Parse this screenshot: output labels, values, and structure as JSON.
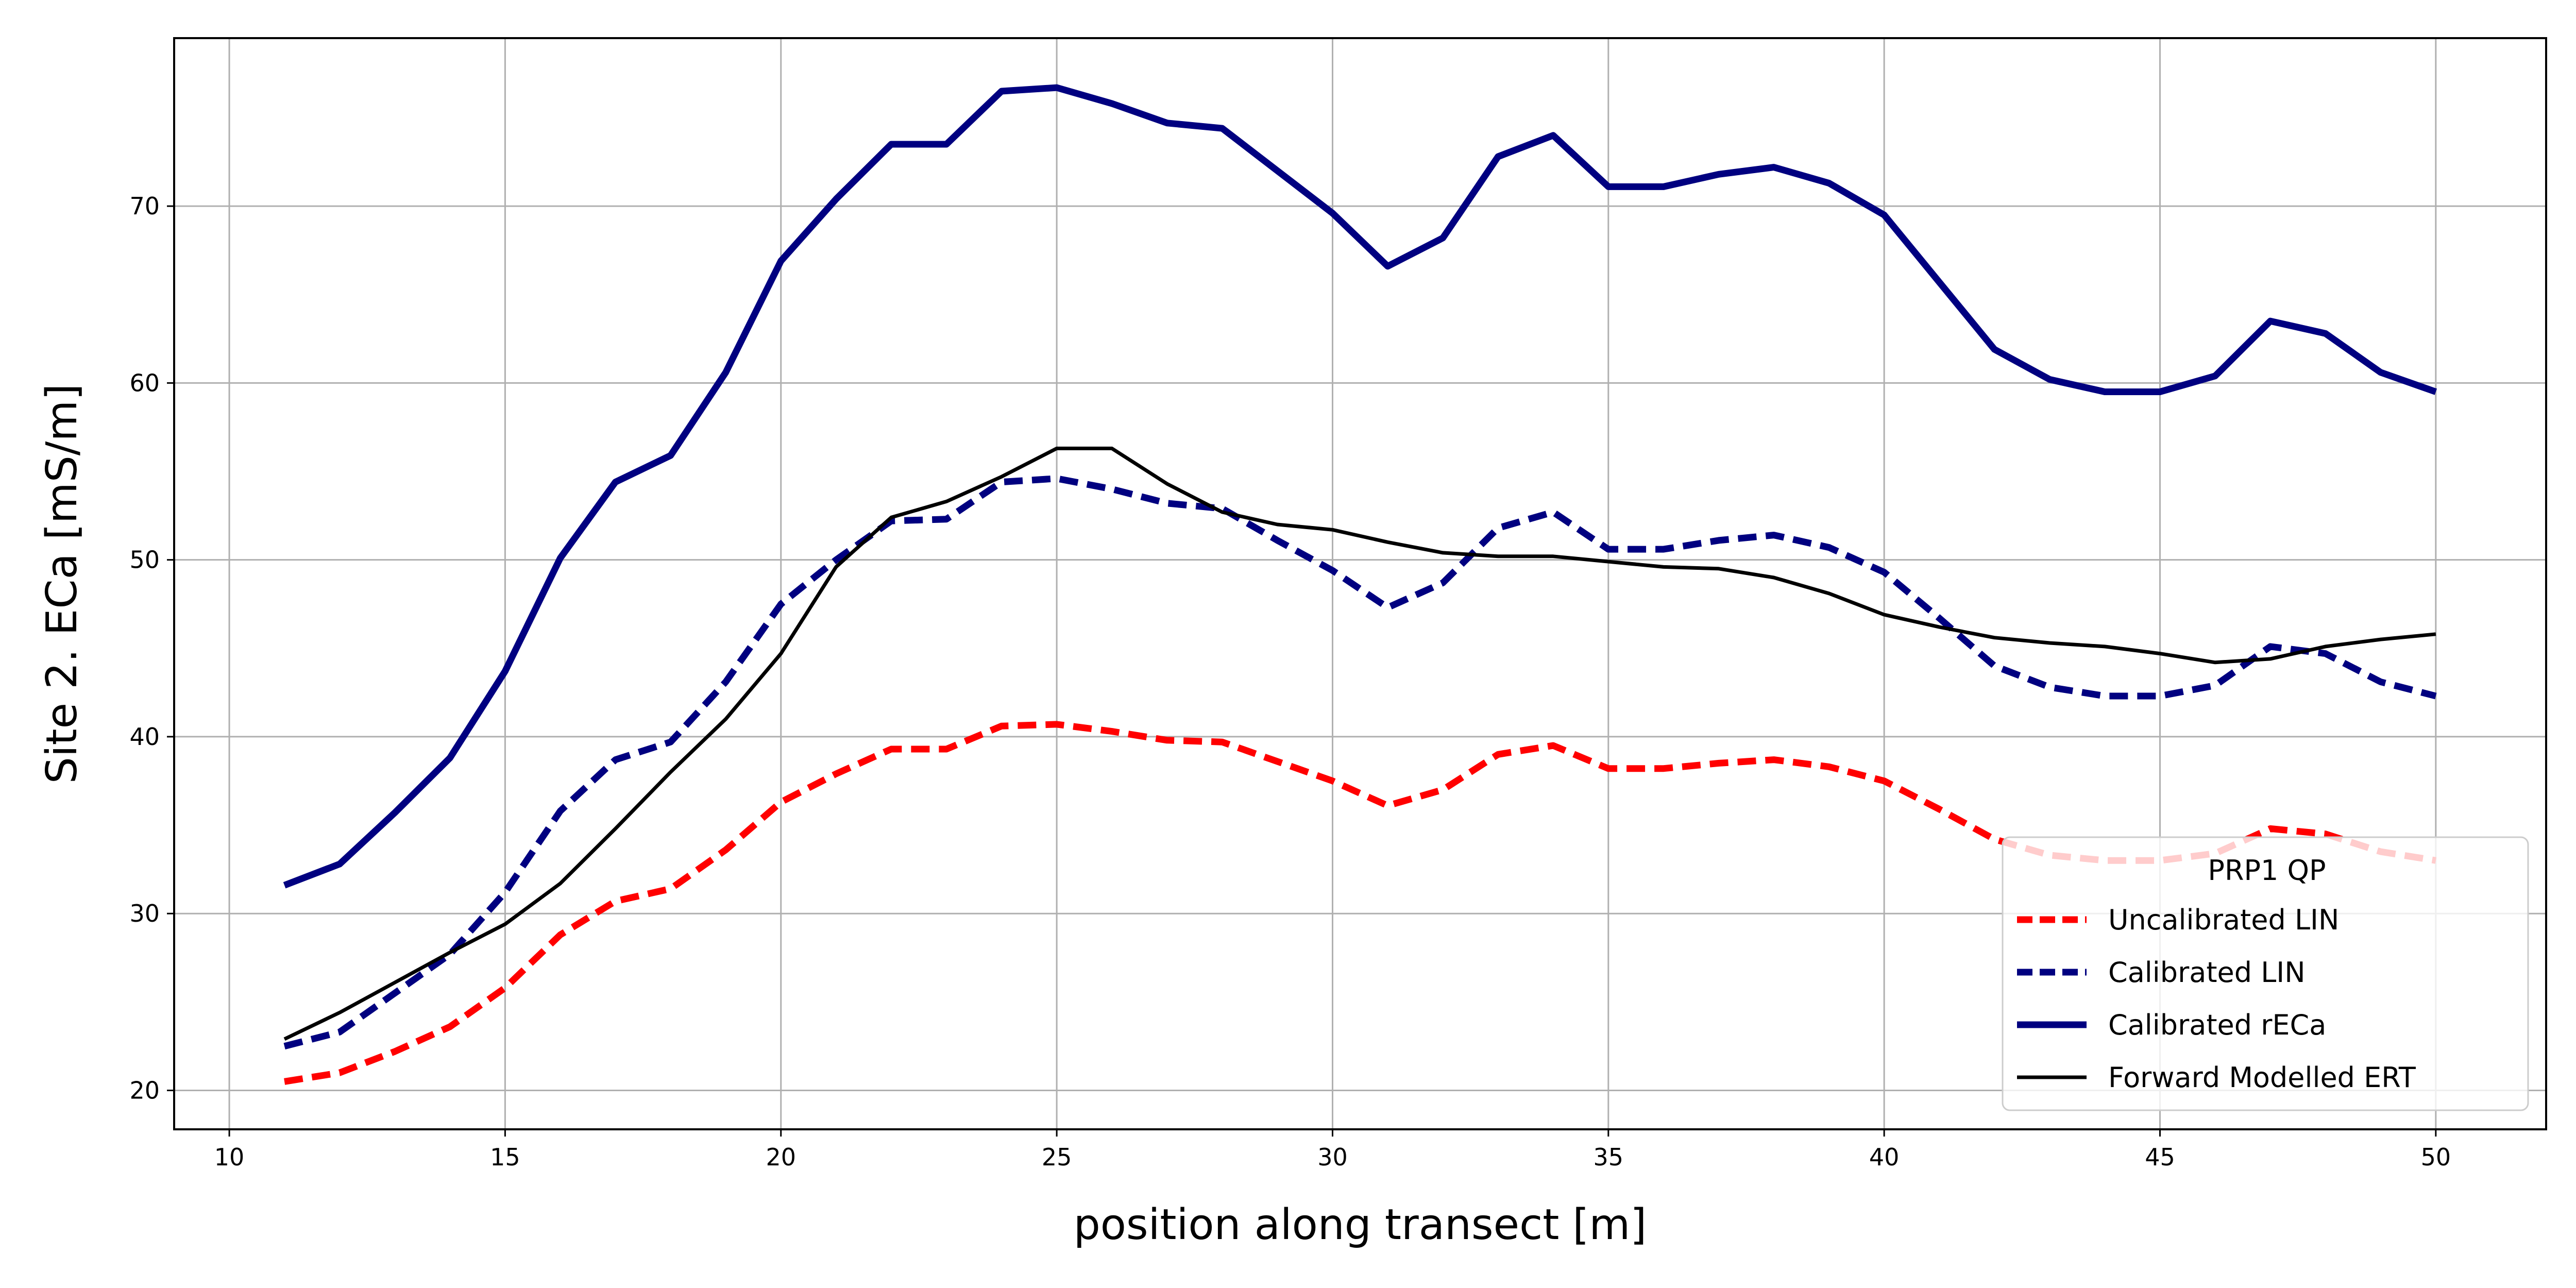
{
  "chart_data": {
    "type": "line",
    "xlabel": "position along transect [m]",
    "ylabel": "Site 2. ECa [mS/m]",
    "xlim": [
      9,
      52
    ],
    "ylim": [
      17.8,
      79.5
    ],
    "xticks": [
      10,
      15,
      20,
      25,
      30,
      35,
      40,
      45,
      50
    ],
    "yticks": [
      20,
      30,
      40,
      50,
      60,
      70
    ],
    "grid": true,
    "legend": {
      "title": "PRP1 QP",
      "position": "lower-right"
    },
    "x": [
      11,
      12,
      13,
      14,
      15,
      16,
      17,
      18,
      19,
      20,
      21,
      22,
      23,
      24,
      25,
      26,
      27,
      28,
      29,
      30,
      31,
      32,
      33,
      34,
      35,
      36,
      37,
      38,
      39,
      40,
      41,
      42,
      43,
      44,
      45,
      46,
      47,
      48,
      49,
      50
    ],
    "series": [
      {
        "name": "Uncalibrated LIN",
        "color": "#ff0000",
        "style": "dashed",
        "width": "thick",
        "values": [
          20.5,
          21.0,
          22.2,
          23.6,
          25.8,
          28.8,
          30.7,
          31.4,
          33.6,
          36.3,
          37.9,
          39.3,
          39.3,
          40.6,
          40.7,
          40.3,
          39.8,
          39.7,
          38.6,
          37.5,
          36.1,
          37.0,
          39.0,
          39.5,
          38.2,
          38.2,
          38.5,
          38.7,
          38.3,
          37.5,
          35.9,
          34.2,
          33.3,
          33.0,
          33.0,
          33.4,
          34.8,
          34.5,
          33.5,
          33.0
        ]
      },
      {
        "name": "Calibrated LIN",
        "color": "#000080",
        "style": "dashed",
        "width": "thick",
        "values": [
          22.5,
          23.3,
          25.5,
          27.7,
          31.2,
          35.8,
          38.7,
          39.7,
          43.1,
          47.5,
          50.0,
          52.2,
          52.3,
          54.4,
          54.6,
          54.0,
          53.2,
          52.9,
          51.1,
          49.4,
          47.3,
          48.7,
          51.8,
          52.7,
          50.6,
          50.6,
          51.1,
          51.4,
          50.7,
          49.3,
          46.7,
          44.0,
          42.8,
          42.3,
          42.3,
          42.9,
          45.1,
          44.7,
          43.1,
          42.3
        ]
      },
      {
        "name": "Calibrated rECa",
        "color": "#000080",
        "style": "solid",
        "width": "thick",
        "values": [
          31.6,
          32.8,
          35.7,
          38.8,
          43.7,
          50.1,
          54.4,
          55.9,
          60.6,
          66.9,
          70.4,
          73.5,
          73.5,
          76.5,
          76.7,
          75.8,
          74.7,
          74.4,
          72.0,
          69.6,
          66.6,
          68.2,
          72.8,
          74.0,
          71.1,
          71.1,
          71.8,
          72.2,
          71.3,
          69.5,
          65.7,
          61.9,
          60.2,
          59.5,
          59.5,
          60.4,
          63.5,
          62.8,
          60.6,
          59.5
        ]
      },
      {
        "name": "Forward Modelled ERT",
        "color": "#000000",
        "style": "solid",
        "width": "thin",
        "values": [
          22.9,
          24.4,
          26.1,
          27.8,
          29.4,
          31.7,
          34.8,
          38.0,
          41.0,
          44.7,
          49.6,
          52.4,
          53.3,
          54.7,
          56.3,
          56.3,
          54.3,
          52.7,
          52.0,
          51.7,
          51.0,
          50.4,
          50.2,
          50.2,
          49.9,
          49.6,
          49.5,
          49.0,
          48.1,
          46.9,
          46.2,
          45.6,
          45.3,
          45.1,
          44.7,
          44.2,
          44.4,
          45.1,
          45.5,
          45.8
        ]
      }
    ]
  }
}
